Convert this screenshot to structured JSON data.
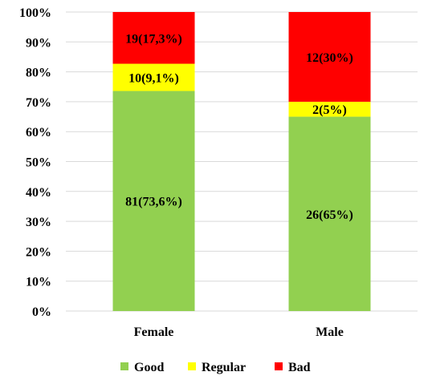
{
  "chart_data": {
    "type": "bar",
    "stacked": true,
    "percent_stacked": true,
    "categories": [
      "Female",
      "Male"
    ],
    "series": [
      {
        "name": "Good",
        "color": "#92D050",
        "values": [
          73.6,
          65
        ],
        "labels": [
          "81(73,6%)",
          "26(65%)"
        ]
      },
      {
        "name": "Regular",
        "color": "#FFFF00",
        "values": [
          9.1,
          5
        ],
        "labels": [
          "10(9,1%)",
          "2(5%)"
        ]
      },
      {
        "name": "Bad",
        "color": "#FF0000",
        "values": [
          17.3,
          30
        ],
        "labels": [
          "19(17,3%)",
          "12(30%)"
        ]
      }
    ],
    "ylim": [
      0,
      100
    ],
    "yticks": [
      "0%",
      "10%",
      "20%",
      "30%",
      "40%",
      "50%",
      "60%",
      "70%",
      "80%",
      "90%",
      "100%"
    ],
    "grid": true,
    "legend_position": "bottom"
  }
}
